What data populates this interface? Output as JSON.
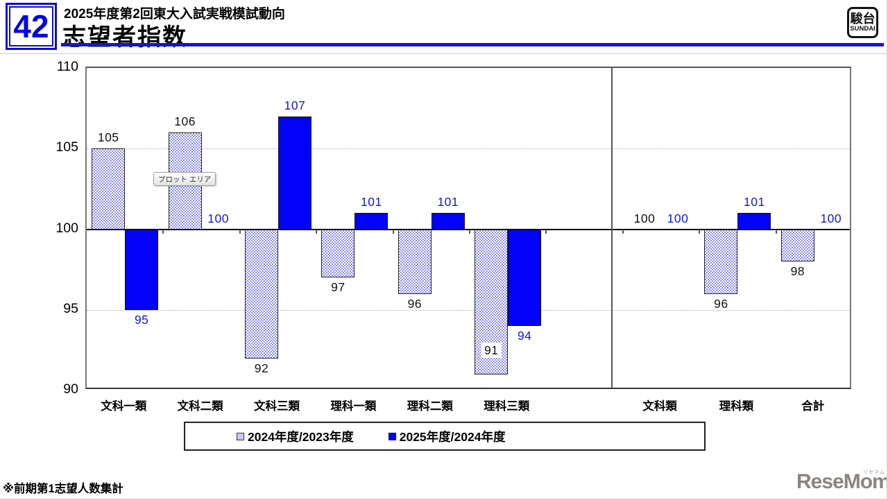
{
  "page": {
    "number": "42"
  },
  "header": {
    "subtitle": "2025年度第2回東大入試実戦模試動向",
    "title": "志望者指数",
    "accent_color": "#1616CE"
  },
  "logos": {
    "sundai_kanji": "駿台",
    "sundai_roman": "SUNDAI",
    "resemom": "ReseMom.",
    "resemom_ruby": "リセマム"
  },
  "tooltip": {
    "text": "プロット エリア"
  },
  "footnote": "※前期第1志望人数集計",
  "chart_data": {
    "type": "bar",
    "title": "志望者指数",
    "categories": [
      "文科一類",
      "文科二類",
      "文科三類",
      "理科一類",
      "理科二類",
      "理科三類",
      "",
      "文科類",
      "理科類",
      "合計"
    ],
    "series": [
      {
        "name": "2024年度/2023年度",
        "style": "hatched",
        "color": "#8f8ff0",
        "label_color": "#111111",
        "values": [
          105,
          106,
          92,
          97,
          96,
          91,
          null,
          100,
          96,
          98
        ]
      },
      {
        "name": "2025年度/2024年度",
        "style": "solid",
        "color": "#0202FA",
        "label_color": "#1414E0",
        "values": [
          95,
          100,
          107,
          101,
          101,
          94,
          null,
          100,
          101,
          100
        ]
      }
    ],
    "baseline": 100,
    "ylim": [
      90,
      110
    ],
    "yticks": [
      90,
      95,
      100,
      105,
      110
    ],
    "gridlines_at": [
      95,
      105
    ],
    "grid_style": "dotted",
    "legend_position": "bottom",
    "value_labels": true,
    "layout_hints": {
      "divider_fraction": 0.685,
      "label_inside": [
        {
          "series": 0,
          "category": "理科三類"
        }
      ]
    }
  }
}
